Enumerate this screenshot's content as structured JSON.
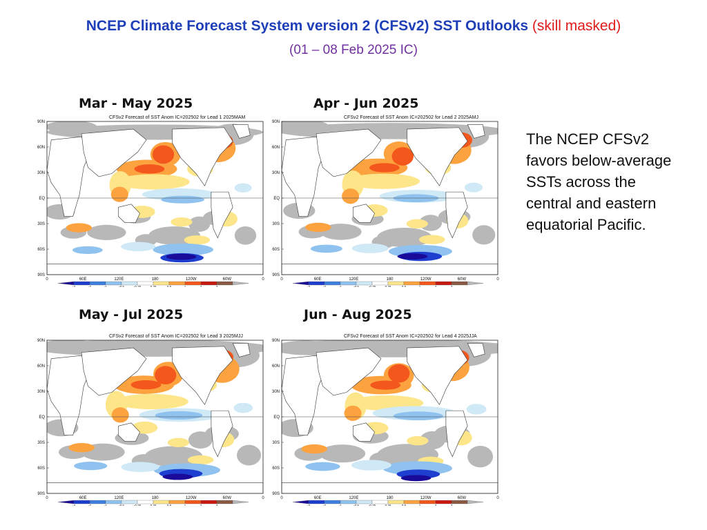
{
  "header": {
    "title": "NCEP Climate Forecast System version 2 (CFSv2) SST Outlooks",
    "title_suffix": "(skill masked)",
    "subtitle": "(01 – 08 Feb 2025 IC)"
  },
  "panels": [
    {
      "season": "Mar - May 2025",
      "plot_title": "CFSv2 Forecast of SST Anom IC=202502 for Lead 1 2025MAM"
    },
    {
      "season": "Apr - Jun 2025",
      "plot_title": "CFSv2 Forecast of SST Anom IC=202502 for Lead 2 2025AMJ"
    },
    {
      "season": "May - Jul 2025",
      "plot_title": "CFSv2 Forecast of SST Anom IC=202502 for Lead 3 2025MJJ"
    },
    {
      "season": "Jun - Aug 2025",
      "plot_title": "CFSv2 Forecast of SST Anom IC=202502 for Lead 4 2025JJA"
    }
  ],
  "axes": {
    "lat_labels": [
      "90N",
      "60N",
      "30N",
      "EQ",
      "30S",
      "60S",
      "90S"
    ],
    "lon_labels": [
      "0",
      "60E",
      "120E",
      "180",
      "120W",
      "60W",
      "0"
    ]
  },
  "colorbar": {
    "labels": [
      "-3",
      "-2",
      "-1",
      "-0.5",
      "-0.25",
      "0.25",
      "0.5",
      "1",
      "2",
      "3"
    ],
    "colors": [
      "#1a0a9a",
      "#1e3ecf",
      "#3f7fe0",
      "#8fc2ef",
      "#cfe9f7",
      "#ffffff",
      "#fde58a",
      "#fca23f",
      "#f4571c",
      "#c81a10",
      "#8a5a44",
      "#b8b8b8"
    ]
  },
  "note": {
    "text": "The NCEP CFSv2 favors below-average SSTs across the central and eastern equatorial Pacific."
  },
  "colors": {
    "title": "#1f3fb8",
    "mask_note": "#e01a1a",
    "subtitle": "#7030a0",
    "masked": "#7a7a7a"
  }
}
